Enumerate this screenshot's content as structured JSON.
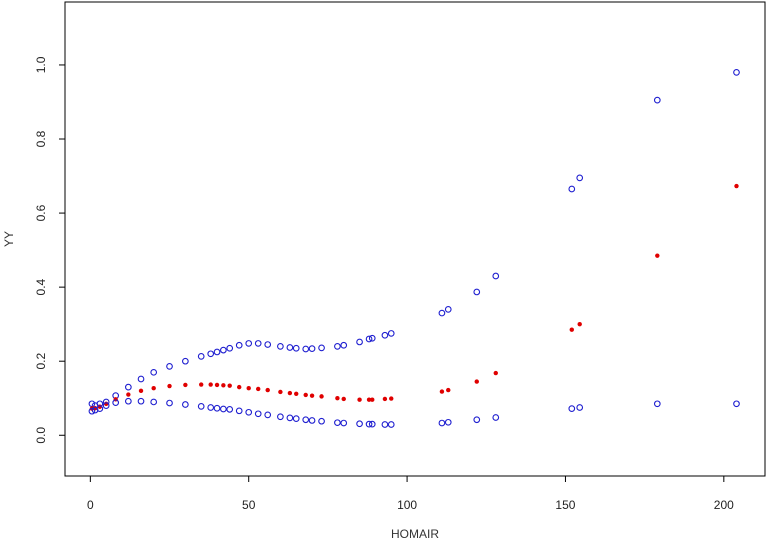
{
  "chart_data": {
    "type": "scatter",
    "title": "",
    "xlabel": "HOMAIR",
    "ylabel": "YY",
    "xlim": [
      -8,
      213
    ],
    "ylim": [
      -0.11,
      1.17
    ],
    "x_ticks": [
      "0",
      "50",
      "100",
      "150",
      "200"
    ],
    "x_tick_values": [
      0,
      50,
      100,
      150,
      200
    ],
    "y_ticks": [
      "0.0",
      "0.2",
      "0.4",
      "0.6",
      "0.8",
      "1.0"
    ],
    "y_tick_values": [
      0.0,
      0.2,
      0.4,
      0.6,
      0.8,
      1.0
    ],
    "grid": false,
    "legend": "none",
    "colors": {
      "estimate": "#e00000",
      "bounds": "#1f1fd0",
      "frame": "#000000"
    },
    "x": [
      0.5,
      1.5,
      3,
      5,
      8,
      12,
      16,
      20,
      25,
      30,
      35,
      38,
      40,
      42,
      44,
      47,
      50,
      53,
      56,
      60,
      63,
      65,
      68,
      70,
      73,
      78,
      80,
      85,
      88,
      89,
      93,
      95,
      111,
      113,
      122,
      128,
      152,
      154.5,
      179,
      204
    ],
    "series": [
      {
        "marker": "open-circle",
        "values": [
          0.085,
          0.08,
          0.085,
          0.09,
          0.107,
          0.13,
          0.152,
          0.17,
          0.186,
          0.2,
          0.213,
          0.22,
          0.225,
          0.23,
          0.235,
          0.243,
          0.248,
          0.248,
          0.245,
          0.24,
          0.237,
          0.235,
          0.233,
          0.234,
          0.236,
          0.24,
          0.243,
          0.252,
          0.26,
          0.262,
          0.27,
          0.275,
          0.33,
          0.34,
          0.387,
          0.43,
          0.665,
          0.695,
          0.905,
          0.98
        ]
      },
      {
        "marker": "filled-dot",
        "values": [
          0.072,
          0.073,
          0.077,
          0.085,
          0.097,
          0.11,
          0.12,
          0.127,
          0.133,
          0.136,
          0.137,
          0.137,
          0.136,
          0.135,
          0.134,
          0.13,
          0.127,
          0.125,
          0.122,
          0.117,
          0.114,
          0.112,
          0.109,
          0.107,
          0.105,
          0.1,
          0.098,
          0.096,
          0.096,
          0.096,
          0.098,
          0.099,
          0.118,
          0.122,
          0.145,
          0.168,
          0.285,
          0.3,
          0.485,
          0.673
        ]
      },
      {
        "marker": "open-circle",
        "values": [
          0.065,
          0.068,
          0.072,
          0.08,
          0.088,
          0.092,
          0.092,
          0.09,
          0.087,
          0.083,
          0.078,
          0.075,
          0.073,
          0.071,
          0.07,
          0.066,
          0.062,
          0.058,
          0.055,
          0.05,
          0.047,
          0.045,
          0.042,
          0.04,
          0.038,
          0.034,
          0.033,
          0.031,
          0.03,
          0.03,
          0.029,
          0.029,
          0.033,
          0.035,
          0.042,
          0.048,
          0.072,
          0.075,
          0.085,
          0.085
        ]
      }
    ]
  }
}
